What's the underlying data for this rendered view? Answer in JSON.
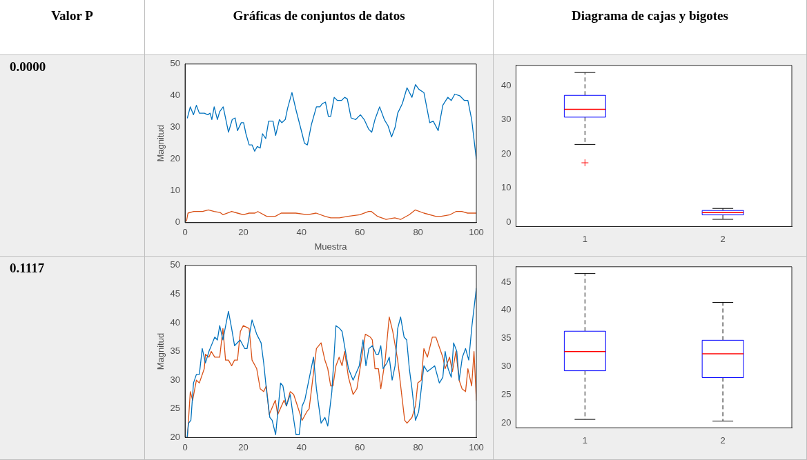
{
  "chart_data": [
    {
      "type": "other",
      "annotations": [
        "Valor P",
        "Gráficas de conjuntos de datos",
        "Diagrama de cajas y bigotes"
      ]
    },
    {
      "type": "other",
      "annotations": [
        "0.0000"
      ]
    },
    {
      "type": "line",
      "ylabel": "Magnitud",
      "xlabel": "Muestra",
      "xlim": [
        0,
        100
      ],
      "xticks": [
        0,
        20,
        40,
        60,
        80,
        100
      ],
      "ylim": [
        0,
        50
      ],
      "yticks": [
        0,
        10,
        20,
        30,
        40,
        50
      ],
      "grid": false,
      "legend": false,
      "marker": "none",
      "line_style": "solid",
      "series": [
        {
          "color": "#0072bd",
          "x": [
            0.8,
            1.8,
            2.9,
            3.9,
            4.9,
            6.6,
            7.8,
            8.6,
            9.2,
            10,
            11.1,
            11.9,
            13.1,
            14.9,
            16.2,
            17.2,
            18,
            19.3,
            20.1,
            20.9,
            22,
            23,
            23.9,
            24.8,
            25.8,
            26.6,
            27.7,
            28.7,
            30.2,
            31.1,
            32.4,
            33.2,
            34.4,
            35.2,
            36.7,
            38.1,
            40.2,
            41,
            42,
            43.4,
            45.1,
            46.3,
            47.1,
            48.2,
            49.2,
            50,
            51.2,
            52.3,
            53.7,
            54.8,
            55.7,
            57,
            58.6,
            60.2,
            61.5,
            63,
            64.1,
            65.2,
            66.8,
            68.4,
            69.7,
            70.9,
            72.1,
            73,
            74.6,
            76.2,
            77.9,
            79.1,
            80.3,
            82,
            84,
            85.2,
            86.9,
            88.5,
            90.2,
            91.4,
            92.6,
            94.3,
            95.9,
            97.1,
            98.4,
            100
          ],
          "values": [
            33,
            36.5,
            34,
            37,
            34.5,
            34.5,
            34,
            34.5,
            32.5,
            36.5,
            32.5,
            35,
            36.5,
            28.5,
            32.5,
            33,
            29,
            31.5,
            31.5,
            28,
            24.5,
            24.5,
            22.5,
            24,
            23.5,
            28,
            26.5,
            32,
            32,
            27.5,
            32.5,
            31.5,
            32.5,
            36,
            41,
            35.5,
            28,
            25,
            24.5,
            31,
            36.5,
            36.5,
            37.5,
            38,
            33.5,
            33.5,
            39.5,
            38.5,
            38.5,
            39.5,
            39,
            33,
            32.5,
            34,
            32.5,
            29.5,
            28.5,
            32.5,
            36.5,
            32.5,
            30.5,
            27,
            30,
            34.5,
            37.5,
            42.5,
            39.5,
            43.5,
            42,
            41,
            31.5,
            32,
            29,
            37,
            39.5,
            38.5,
            40.5,
            40,
            38.5,
            38.5,
            32.5,
            20
          ]
        },
        {
          "color": "#d95319",
          "x": [
            0.5,
            1,
            3,
            6,
            8,
            10,
            12,
            13,
            16,
            18,
            20,
            22,
            24,
            25,
            28,
            31,
            33,
            36,
            38,
            42,
            45,
            48,
            50,
            53,
            56,
            60,
            63,
            64,
            66,
            69,
            72,
            74,
            77,
            79,
            82,
            86,
            88,
            91,
            93,
            95,
            97,
            100
          ],
          "values": [
            0.5,
            3,
            3.5,
            3.5,
            4,
            3.5,
            3.2,
            2.5,
            3.5,
            3,
            2.5,
            3,
            3,
            3.5,
            2,
            2,
            3,
            3,
            3,
            2.5,
            3,
            2,
            1.5,
            1.5,
            2,
            2.5,
            3.5,
            3.5,
            2,
            1,
            1.5,
            1,
            2.5,
            4,
            3,
            2,
            2,
            2.5,
            3.5,
            3.5,
            3,
            3
          ]
        }
      ]
    },
    {
      "type": "box",
      "categories": [
        "1",
        "2"
      ],
      "ylim": [
        -1.3,
        46
      ],
      "yticks": [
        0,
        10,
        20,
        30,
        40
      ],
      "grid": false,
      "legend": false,
      "boxes": [
        {
          "low": 22.8,
          "q1": 30.8,
          "median": 33.1,
          "q3": 37.2,
          "high": 43.9,
          "outliers": [
            17.4
          ]
        },
        {
          "low": 0.8,
          "q1": 2.1,
          "median": 2.8,
          "q3": 3.4,
          "high": 4
        }
      ]
    },
    {
      "type": "other",
      "annotations": [
        "0.1117"
      ]
    },
    {
      "type": "line",
      "ylabel": "Magnitud",
      "xlim": [
        0,
        100
      ],
      "xticks": [
        0,
        20,
        40,
        60,
        80,
        100
      ],
      "ylim": [
        20,
        50
      ],
      "yticks": [
        20,
        25,
        30,
        35,
        40,
        45,
        50
      ],
      "grid": false,
      "legend": false,
      "marker": "none",
      "line_style": "solid",
      "series": [
        {
          "color": "#0072bd",
          "x": [
            0.7,
            1.2,
            2,
            2.9,
            3.9,
            4.9,
            5.9,
            7,
            8.2,
            9.4,
            10.2,
            11.1,
            11.9,
            13,
            14.9,
            16,
            17,
            18.9,
            20.5,
            21.3,
            23,
            24.6,
            26.1,
            27,
            27.9,
            29.1,
            29.9,
            31.1,
            32.8,
            33.6,
            34.8,
            36.1,
            36.9,
            38.1,
            39.2,
            40.2,
            41.1,
            44.1,
            45.1,
            46.7,
            48,
            49,
            50.4,
            51.8,
            53.1,
            53.9,
            56.1,
            57.7,
            59.8,
            61.1,
            62.1,
            63.1,
            64.3,
            65.6,
            66.4,
            67.2,
            68,
            69.3,
            70.1,
            71.1,
            72.1,
            73,
            74,
            75.2,
            76.1,
            77,
            77.9,
            79.1,
            80.2,
            82,
            83.2,
            85.7,
            87.3,
            88.5,
            89.3,
            90.3,
            91.4,
            92.2,
            93.3,
            94.1,
            95.2,
            96.3,
            97.4,
            98.5,
            100
          ],
          "values": [
            20,
            22.5,
            23,
            29.5,
            31,
            31,
            35.5,
            33,
            35,
            36.5,
            37.5,
            37,
            39.5,
            37,
            42,
            39,
            36,
            37,
            35.5,
            35.5,
            40.5,
            38,
            36.5,
            33,
            28.5,
            23.5,
            23,
            20.5,
            29.5,
            29,
            25.5,
            27.5,
            24.5,
            20.5,
            20.5,
            25.5,
            26.5,
            34,
            28.5,
            22.5,
            23.5,
            22,
            28,
            39.5,
            39,
            38.5,
            32,
            30,
            32.5,
            37,
            32.5,
            35.5,
            36,
            34.5,
            34.5,
            36,
            32,
            33,
            34,
            30,
            32.5,
            39,
            41,
            37.5,
            37,
            32,
            28.5,
            23,
            24.5,
            32.5,
            31.5,
            32.5,
            29.5,
            30.5,
            35,
            32,
            30.5,
            36.5,
            35,
            30,
            34,
            35.5,
            33.5,
            39.5,
            46
          ]
        },
        {
          "color": "#d95319",
          "x": [
            0.8,
            1.8,
            2.6,
            3.9,
            4.9,
            6.6,
            7,
            8.2,
            9,
            10.2,
            11.9,
            13,
            13.9,
            14.9,
            16,
            17,
            18,
            19,
            20,
            22,
            23,
            24.6,
            25.8,
            27,
            27.9,
            28.9,
            31,
            31.8,
            34,
            34.8,
            36.1,
            37.3,
            40.2,
            41.8,
            42.6,
            45.1,
            46.7,
            48,
            49,
            50,
            50.8,
            51.8,
            52.9,
            53.9,
            54.8,
            56.1,
            57.7,
            59,
            61.9,
            63.6,
            64.3,
            65.2,
            66.4,
            67.2,
            68.7,
            70.1,
            71.3,
            73,
            74.6,
            75.4,
            76.2,
            77.9,
            79.1,
            79.9,
            81.1,
            82,
            83.2,
            84.9,
            86.1,
            88.5,
            89.3,
            90.8,
            91.8,
            93,
            94.1,
            95.1,
            96.3,
            97.1,
            98.4,
            99.2,
            100
          ],
          "values": [
            20,
            28,
            26.5,
            30,
            29.5,
            32,
            34.5,
            34,
            35,
            34,
            34,
            39,
            33.5,
            33.5,
            32.5,
            33.5,
            33.5,
            38.5,
            39.5,
            39,
            33.5,
            32,
            28.5,
            28,
            29,
            24,
            26.5,
            24,
            26.5,
            25.5,
            28,
            27.5,
            23,
            24.5,
            25,
            35.5,
            36.5,
            33.5,
            32,
            29,
            29,
            32.5,
            34,
            32.5,
            35,
            30.5,
            27.5,
            28.5,
            38,
            37.5,
            37,
            32,
            32,
            28.5,
            33.5,
            41,
            38.5,
            33.5,
            26.5,
            23,
            22.5,
            23.5,
            25.5,
            29.5,
            30,
            35.5,
            34,
            37.5,
            37.5,
            34,
            32,
            34,
            31.5,
            35,
            30,
            28.5,
            28,
            32,
            29,
            35,
            26.5
          ]
        }
      ]
    },
    {
      "type": "box",
      "categories": [
        "1",
        "2"
      ],
      "ylim": [
        19.2,
        47.7
      ],
      "yticks": [
        20,
        25,
        30,
        35,
        40,
        45
      ],
      "grid": false,
      "legend": false,
      "boxes": [
        {
          "low": 20.7,
          "q1": 29.3,
          "median": 32.7,
          "q3": 36.3,
          "high": 46.5
        },
        {
          "low": 20.4,
          "q1": 28.1,
          "median": 32.3,
          "q3": 34.7,
          "high": 41.4
        }
      ]
    }
  ]
}
